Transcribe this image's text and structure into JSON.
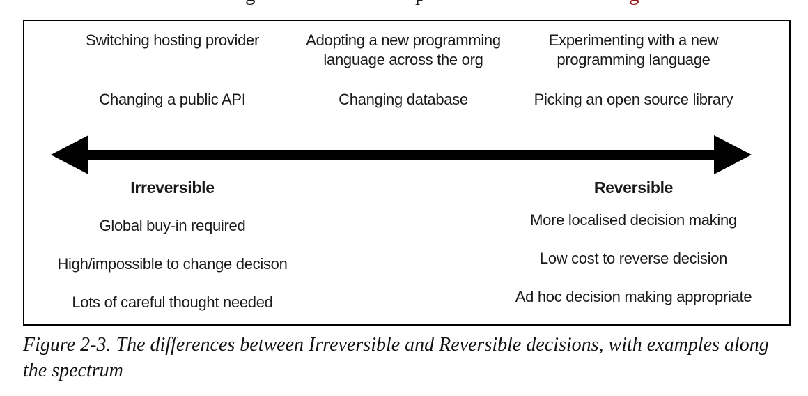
{
  "colors": {
    "ink": "#1a1a1a",
    "link_red": "#9a1515",
    "arrow": "#000000",
    "border": "#000000"
  },
  "cropped_top_line": {
    "description": "bottom descenders of a cut-off line of body text",
    "fragments": [
      {
        "char": "g",
        "color": "#1a1a1a"
      },
      {
        "char": "p",
        "color": "#1a1a1a"
      },
      {
        "char": "g",
        "color": "#9a1515"
      }
    ]
  },
  "figure": {
    "examples": {
      "irreversible_1": "Switching hosting provider",
      "irreversible_2": "Changing a public API",
      "middle_1": "Adopting a new programming language across the org",
      "middle_2": "Changing database",
      "reversible_1": "Experimenting with a new programming language",
      "reversible_2": "Picking an open source library"
    },
    "axis_labels": {
      "left": "Irreversible",
      "right": "Reversible"
    },
    "irreversible_traits": [
      "Global buy-in required",
      "High/impossible to change decison",
      "Lots of careful thought needed"
    ],
    "reversible_traits": [
      "More localised decision making",
      "Low cost to reverse decision",
      "Ad hoc decision making appropriate"
    ]
  },
  "caption": "Figure 2-3. The differences between Irreversible and Reversible decisions, with examples along the spectrum"
}
